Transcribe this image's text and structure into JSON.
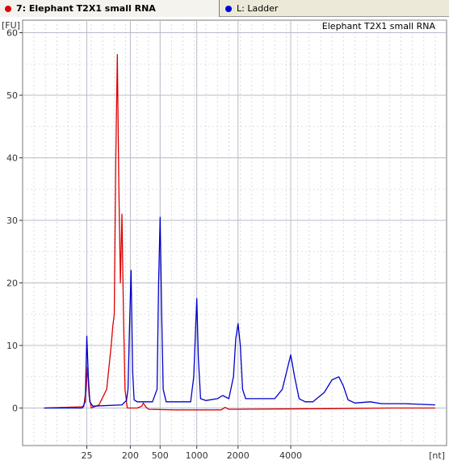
{
  "tabs": [
    {
      "label": "7: Elephant T2X1 small RNA",
      "color": "#e00000",
      "active": true
    },
    {
      "label": "L: Ladder",
      "color": "#0000dd",
      "active": false
    }
  ],
  "colors": {
    "sample": "#dd0000",
    "ladder": "#0000c8",
    "grid": "#b8bcc8",
    "axis": "#333333",
    "text": "#333333"
  },
  "chart_data": {
    "type": "line",
    "title": "Elephant T2X1 small RNA",
    "xlabel": "[nt]",
    "ylabel": "[FU]",
    "ylim": [
      -6,
      62
    ],
    "yticks": [
      0,
      10,
      20,
      30,
      40,
      50,
      60
    ],
    "xlim": [
      0,
      555
    ],
    "xticks": [
      {
        "label": "25",
        "x": 84
      },
      {
        "label": "200",
        "x": 141
      },
      {
        "label": "500",
        "x": 180
      },
      {
        "label": "1000",
        "x": 228
      },
      {
        "label": "2000",
        "x": 282
      },
      {
        "label": "4000",
        "x": 351
      }
    ],
    "grid": true,
    "series": [
      {
        "name": "7: Elephant T2X1 small RNA",
        "color": "#dd0000",
        "points": [
          [
            28,
            0
          ],
          [
            80,
            0.2
          ],
          [
            83,
            3
          ],
          [
            85,
            6.5
          ],
          [
            87,
            2
          ],
          [
            90,
            0
          ],
          [
            100,
            0.5
          ],
          [
            110,
            3
          ],
          [
            116,
            10
          ],
          [
            118,
            13
          ],
          [
            120,
            15
          ],
          [
            122,
            40
          ],
          [
            124,
            56.5
          ],
          [
            126,
            35
          ],
          [
            128,
            20
          ],
          [
            130,
            31
          ],
          [
            132,
            15
          ],
          [
            134,
            3
          ],
          [
            137,
            0
          ],
          [
            141,
            0
          ],
          [
            150,
            0
          ],
          [
            156,
            0.3
          ],
          [
            158,
            0.8
          ],
          [
            161,
            0.2
          ],
          [
            165,
            -0.2
          ],
          [
            200,
            -0.3
          ],
          [
            260,
            -0.3
          ],
          [
            265,
            0.1
          ],
          [
            270,
            -0.2
          ],
          [
            400,
            -0.1
          ],
          [
            480,
            0
          ],
          [
            540,
            0
          ]
        ]
      },
      {
        "name": "L: Ladder",
        "color": "#0000c8",
        "points": [
          [
            28,
            0
          ],
          [
            78,
            0
          ],
          [
            82,
            1
          ],
          [
            84,
            11.5
          ],
          [
            86,
            5
          ],
          [
            88,
            1
          ],
          [
            92,
            0.3
          ],
          [
            130,
            0.5
          ],
          [
            136,
            1.2
          ],
          [
            138,
            3
          ],
          [
            140,
            13
          ],
          [
            142,
            22
          ],
          [
            144,
            6
          ],
          [
            146,
            1.3
          ],
          [
            150,
            1
          ],
          [
            170,
            1
          ],
          [
            176,
            3
          ],
          [
            178,
            20
          ],
          [
            180,
            30.5
          ],
          [
            182,
            15
          ],
          [
            184,
            3
          ],
          [
            188,
            1
          ],
          [
            220,
            1
          ],
          [
            224,
            5
          ],
          [
            228,
            17.5
          ],
          [
            230,
            8
          ],
          [
            233,
            1.5
          ],
          [
            240,
            1.2
          ],
          [
            255,
            1.5
          ],
          [
            262,
            2
          ],
          [
            270,
            1.5
          ],
          [
            276,
            5
          ],
          [
            279,
            11
          ],
          [
            282,
            13.5
          ],
          [
            285,
            10
          ],
          [
            288,
            3
          ],
          [
            292,
            1.5
          ],
          [
            330,
            1.5
          ],
          [
            340,
            3
          ],
          [
            346,
            6
          ],
          [
            351,
            8.5
          ],
          [
            356,
            5
          ],
          [
            362,
            1.5
          ],
          [
            370,
            1
          ],
          [
            380,
            1
          ],
          [
            395,
            2.5
          ],
          [
            405,
            4.5
          ],
          [
            414,
            5
          ],
          [
            420,
            3.5
          ],
          [
            426,
            1.3
          ],
          [
            435,
            0.8
          ],
          [
            455,
            1
          ],
          [
            470,
            0.7
          ],
          [
            500,
            0.7
          ],
          [
            540,
            0.5
          ]
        ]
      }
    ]
  }
}
